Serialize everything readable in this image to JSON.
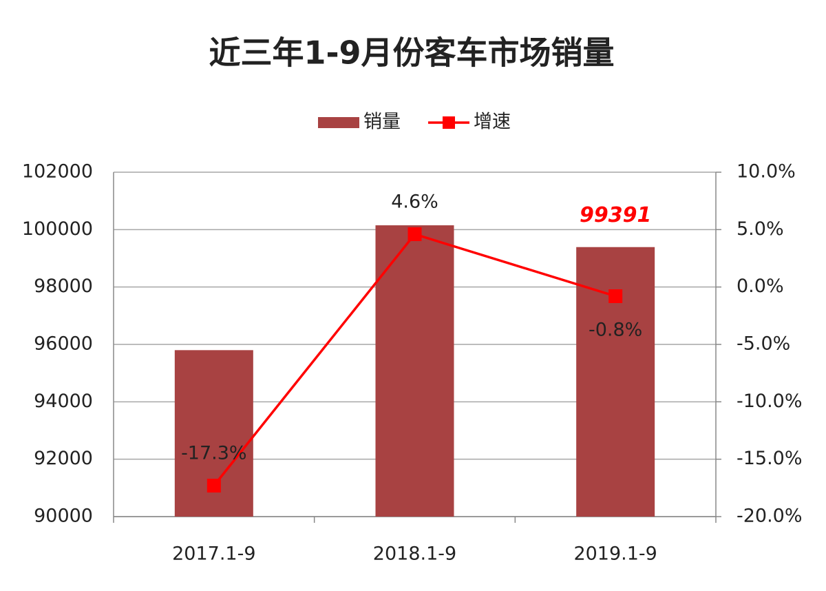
{
  "chart_data": {
    "type": "bar-line",
    "title": "近三年1-9月份客车市场销量",
    "categories": [
      "2017.1-9",
      "2018.1-9",
      "2019.1-9"
    ],
    "series": [
      {
        "name": "销量",
        "type": "bar",
        "color": "#a84242",
        "values": [
          95800,
          100150,
          99391
        ],
        "show_labels": [
          false,
          false,
          true
        ],
        "label_color": "#ff0000"
      },
      {
        "name": "增速",
        "type": "line",
        "axis": "y2",
        "color": "#ff0000",
        "values": [
          -17.3,
          4.6,
          -0.8
        ],
        "value_labels": [
          "-17.3%",
          "4.6%",
          "-0.8%"
        ]
      }
    ],
    "ylim": [
      90000,
      102000
    ],
    "yticks": [
      90000,
      92000,
      94000,
      96000,
      98000,
      100000,
      102000
    ],
    "y2lim": [
      -20,
      10
    ],
    "y2ticks": [
      {
        "value": -20,
        "label": "-20.0%"
      },
      {
        "value": -15,
        "label": "-15.0%"
      },
      {
        "value": -10,
        "label": "-10.0%"
      },
      {
        "value": -5,
        "label": "-5.0%"
      },
      {
        "value": 0,
        "label": "0.0%"
      },
      {
        "value": 5,
        "label": "5.0%"
      },
      {
        "value": 10,
        "label": "10.0%"
      }
    ],
    "grid": true,
    "legend": "top"
  }
}
